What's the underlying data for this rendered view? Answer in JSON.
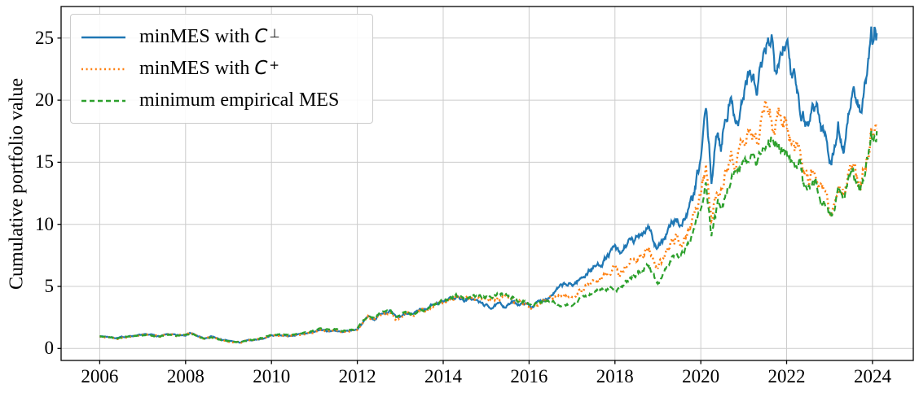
{
  "chart_data": {
    "type": "line",
    "title": "",
    "xlabel": "",
    "ylabel": "Cumulative portfolio value",
    "grid": true,
    "legend_position": "upper left",
    "xlim": [
      2005.1,
      2024.95
    ],
    "ylim": [
      -0.96,
      27.54
    ],
    "x_ticks": [
      "2006",
      "2008",
      "2010",
      "2012",
      "2014",
      "2016",
      "2018",
      "2020",
      "2022",
      "2024"
    ],
    "x_tick_years": [
      2006,
      2008,
      2010,
      2012,
      2014,
      2016,
      2018,
      2020,
      2022,
      2024
    ],
    "y_ticks": [
      0,
      5,
      10,
      15,
      20,
      25
    ],
    "grid_color": "#cccccc",
    "x": [
      2006.0,
      2006.2,
      2006.4,
      2006.6,
      2006.9,
      2007.2,
      2007.4,
      2007.6,
      2007.8,
      2008.0,
      2008.1,
      2008.25,
      2008.45,
      2008.6,
      2008.75,
      2008.9,
      2009.1,
      2009.25,
      2009.4,
      2009.6,
      2009.8,
      2010.0,
      2010.2,
      2010.4,
      2010.6,
      2010.8,
      2011.0,
      2011.15,
      2011.3,
      2011.5,
      2011.65,
      2011.8,
      2012.0,
      2012.1,
      2012.25,
      2012.4,
      2012.55,
      2012.75,
      2012.9,
      2013.0,
      2013.17,
      2013.3,
      2013.45,
      2013.6,
      2013.75,
      2013.9,
      2014.0,
      2014.3,
      2014.5,
      2014.7,
      2014.9,
      2015.1,
      2015.3,
      2015.45,
      2015.6,
      2015.75,
      2015.9,
      2016.05,
      2016.2,
      2016.35,
      2016.5,
      2016.65,
      2016.8,
      2017.0,
      2017.2,
      2017.4,
      2017.6,
      2017.8,
      2018.0,
      2018.12,
      2018.3,
      2018.45,
      2018.6,
      2018.8,
      2018.92,
      2019.0,
      2019.15,
      2019.3,
      2019.45,
      2019.55,
      2019.7,
      2019.85,
      2020.0,
      2020.12,
      2020.18,
      2020.25,
      2020.33,
      2020.4,
      2020.47,
      2020.55,
      2020.65,
      2020.75,
      2020.87,
      2021.0,
      2021.1,
      2021.2,
      2021.3,
      2021.4,
      2021.5,
      2021.58,
      2021.65,
      2021.72,
      2021.8,
      2021.9,
      2021.98,
      2022.1,
      2022.2,
      2022.3,
      2022.38,
      2022.5,
      2022.6,
      2022.7,
      2022.8,
      2022.9,
      2023.0,
      2023.1,
      2023.2,
      2023.32,
      2023.42,
      2023.52,
      2023.62,
      2023.72,
      2023.8,
      2023.9,
      2023.97,
      2024.02,
      2024.07,
      2024.1
    ],
    "series": [
      {
        "name": "minMES with C⊥",
        "label_prefix": "minMES with ",
        "label_symbol": "C",
        "label_sup": "⊥",
        "color": "#1f77b4",
        "style": "solid",
        "values": [
          1.0,
          0.95,
          0.85,
          0.95,
          1.08,
          1.1,
          0.98,
          1.15,
          1.05,
          1.12,
          1.28,
          1.05,
          0.78,
          0.95,
          0.8,
          0.65,
          0.55,
          0.48,
          0.6,
          0.7,
          0.8,
          1.05,
          1.1,
          1.0,
          1.1,
          1.2,
          1.35,
          1.5,
          1.4,
          1.45,
          1.28,
          1.4,
          1.55,
          2.0,
          2.6,
          2.35,
          2.85,
          3.05,
          2.45,
          2.55,
          2.95,
          2.65,
          3.1,
          3.05,
          3.5,
          3.65,
          3.85,
          4.2,
          3.9,
          4.0,
          3.6,
          3.3,
          3.55,
          3.4,
          3.7,
          3.6,
          3.65,
          3.35,
          3.7,
          4.0,
          4.3,
          4.7,
          5.1,
          5.1,
          5.6,
          6.3,
          6.7,
          7.3,
          8.1,
          7.4,
          8.6,
          8.5,
          9.3,
          10.0,
          8.3,
          7.8,
          9.0,
          9.9,
          10.4,
          10.0,
          11.0,
          12.4,
          15.2,
          19.3,
          16.5,
          13.4,
          16.0,
          17.5,
          16.2,
          18.5,
          19.8,
          19.5,
          18.3,
          20.5,
          21.8,
          22.0,
          20.4,
          22.5,
          23.1,
          24.5,
          25.3,
          22.8,
          24.0,
          24.6,
          25.2,
          22.0,
          22.5,
          20.0,
          19.0,
          18.2,
          19.5,
          19.7,
          17.8,
          17.2,
          15.3,
          15.8,
          17.8,
          16.0,
          18.5,
          20.7,
          19.8,
          19.0,
          20.5,
          22.5,
          24.7,
          24.2,
          26.0,
          25.4
        ]
      },
      {
        "name": "minMES with C+",
        "label_prefix": "minMES with ",
        "label_symbol": "C",
        "label_sup": "+",
        "color": "#ff7f0e",
        "style": "dotted",
        "values": [
          0.98,
          0.93,
          0.84,
          0.94,
          1.07,
          1.08,
          0.97,
          1.13,
          1.04,
          1.1,
          1.25,
          1.03,
          0.77,
          0.93,
          0.79,
          0.64,
          0.54,
          0.47,
          0.59,
          0.69,
          0.79,
          1.03,
          1.08,
          0.99,
          1.09,
          1.19,
          1.33,
          1.48,
          1.38,
          1.43,
          1.3,
          1.4,
          1.55,
          1.98,
          2.55,
          2.3,
          2.8,
          3.0,
          2.4,
          2.5,
          2.88,
          2.6,
          3.05,
          3.0,
          3.45,
          3.6,
          3.8,
          4.15,
          3.95,
          4.05,
          3.95,
          3.9,
          4.0,
          4.05,
          3.9,
          3.7,
          3.7,
          3.3,
          3.6,
          3.85,
          4.0,
          4.15,
          4.25,
          4.15,
          4.6,
          5.2,
          5.5,
          5.95,
          6.5,
          6.0,
          6.9,
          7.1,
          7.6,
          8.0,
          6.7,
          6.3,
          7.4,
          8.4,
          9.0,
          8.7,
          9.6,
          10.8,
          12.5,
          14.3,
          12.5,
          10.3,
          12.0,
          13.3,
          12.8,
          13.8,
          14.8,
          15.5,
          15.2,
          16.5,
          17.2,
          17.5,
          16.6,
          18.2,
          19.0,
          19.4,
          18.5,
          17.5,
          18.8,
          18.6,
          18.9,
          17.0,
          16.2,
          16.5,
          14.8,
          13.6,
          14.5,
          14.3,
          13.0,
          12.2,
          10.8,
          11.5,
          13.5,
          12.8,
          13.8,
          14.4,
          13.8,
          13.2,
          14.5,
          16.0,
          17.5,
          17.2,
          18.0,
          17.7
        ]
      },
      {
        "name": "minimum empirical MES",
        "label_prefix": "minimum empirical MES",
        "label_symbol": "",
        "label_sup": "",
        "color": "#2ca02c",
        "style": "dashed",
        "values": [
          0.97,
          0.92,
          0.83,
          0.93,
          1.05,
          1.06,
          0.96,
          1.12,
          1.03,
          1.09,
          1.22,
          1.02,
          0.76,
          0.92,
          0.78,
          0.64,
          0.55,
          0.5,
          0.62,
          0.73,
          0.85,
          1.1,
          1.18,
          1.08,
          1.2,
          1.3,
          1.45,
          1.62,
          1.52,
          1.55,
          1.4,
          1.5,
          1.65,
          2.05,
          2.65,
          2.4,
          2.9,
          3.1,
          2.5,
          2.6,
          2.95,
          2.7,
          3.15,
          3.1,
          3.55,
          3.7,
          3.9,
          4.25,
          4.05,
          4.15,
          4.25,
          4.3,
          4.35,
          4.45,
          4.1,
          3.8,
          3.75,
          3.4,
          3.65,
          3.8,
          3.75,
          3.6,
          3.55,
          3.65,
          3.95,
          4.35,
          4.6,
          4.85,
          5.1,
          4.8,
          5.6,
          5.85,
          6.3,
          6.75,
          5.7,
          5.4,
          6.3,
          7.2,
          7.7,
          7.5,
          8.4,
          9.6,
          11.2,
          13.0,
          11.2,
          9.2,
          10.6,
          11.5,
          11.2,
          12.2,
          13.2,
          13.8,
          13.9,
          14.8,
          15.0,
          15.2,
          14.9,
          15.8,
          16.2,
          16.6,
          16.9,
          15.8,
          16.4,
          16.2,
          16.3,
          15.0,
          14.6,
          14.8,
          13.4,
          12.5,
          13.4,
          13.2,
          12.0,
          11.5,
          11.0,
          10.7,
          12.5,
          12.0,
          13.2,
          14.1,
          13.5,
          12.9,
          14.0,
          15.5,
          17.0,
          16.8,
          17.6,
          17.5
        ]
      }
    ]
  }
}
